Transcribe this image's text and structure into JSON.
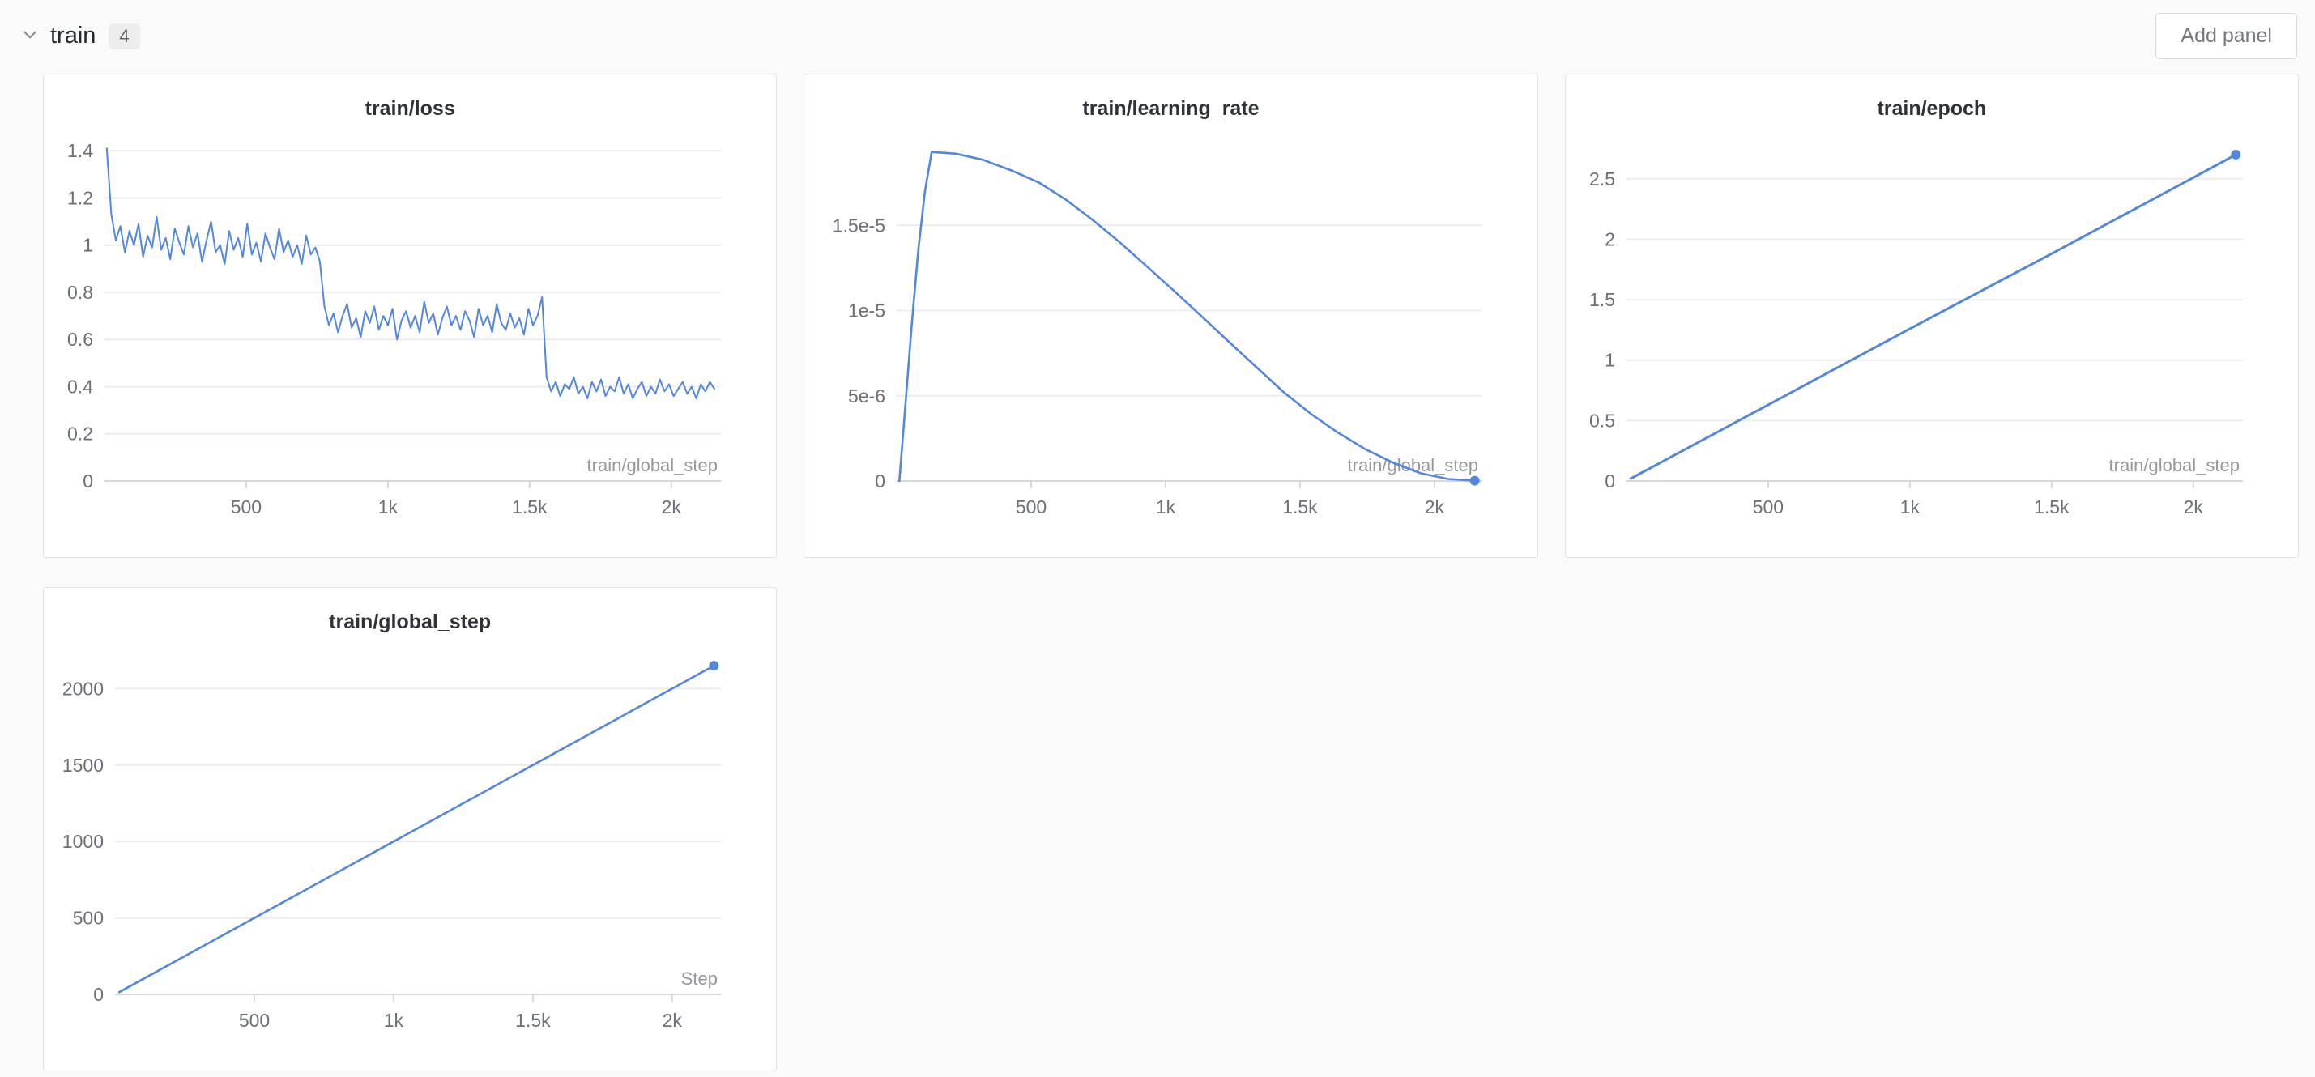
{
  "header": {
    "section_title": "train",
    "panel_count": "4",
    "add_panel_label": "Add panel"
  },
  "colors": {
    "accent_blue": "#5387dd",
    "grid": "#ececec",
    "axis": "#d8d8d8",
    "tick_text": "#6b7077",
    "axis_label_text": "#95989c"
  },
  "chart_data": [
    {
      "type": "line",
      "title": "train/loss",
      "xlabel": "train/global_step",
      "xlim": [
        0,
        2175
      ],
      "ylim": [
        0,
        1.445
      ],
      "x_ticks": [
        500,
        1000,
        1500,
        2000
      ],
      "x_tick_labels": [
        "500",
        "1k",
        "1.5k",
        "2k"
      ],
      "y_ticks": [
        0,
        0.2,
        0.4,
        0.6,
        0.8,
        1.0,
        1.2,
        1.4
      ],
      "y_tick_labels": [
        "0",
        "0.2",
        "0.4",
        "0.6",
        "0.8",
        "1",
        "1.2",
        "1.4"
      ],
      "series": {
        "x0": 8,
        "dx": 16,
        "y": [
          1.41,
          1.13,
          1.02,
          1.08,
          0.97,
          1.06,
          1.0,
          1.09,
          0.95,
          1.04,
          0.99,
          1.12,
          0.98,
          1.03,
          0.94,
          1.07,
          1.01,
          0.96,
          1.08,
          0.99,
          1.05,
          0.93,
          1.02,
          1.1,
          0.97,
          1.0,
          0.92,
          1.06,
          0.98,
          1.03,
          0.95,
          1.09,
          0.96,
          1.01,
          0.93,
          1.05,
          0.99,
          0.94,
          1.07,
          0.97,
          1.02,
          0.95,
          1.0,
          0.92,
          1.04,
          0.96,
          0.99,
          0.93,
          0.74,
          0.66,
          0.71,
          0.63,
          0.7,
          0.75,
          0.65,
          0.69,
          0.61,
          0.72,
          0.67,
          0.74,
          0.64,
          0.7,
          0.66,
          0.73,
          0.6,
          0.68,
          0.72,
          0.65,
          0.7,
          0.63,
          0.76,
          0.67,
          0.71,
          0.62,
          0.69,
          0.74,
          0.66,
          0.7,
          0.64,
          0.72,
          0.68,
          0.61,
          0.73,
          0.66,
          0.7,
          0.63,
          0.75,
          0.67,
          0.64,
          0.71,
          0.65,
          0.69,
          0.62,
          0.73,
          0.66,
          0.7,
          0.78,
          0.44,
          0.38,
          0.42,
          0.36,
          0.41,
          0.39,
          0.44,
          0.37,
          0.4,
          0.35,
          0.42,
          0.38,
          0.43,
          0.36,
          0.4,
          0.38,
          0.44,
          0.37,
          0.41,
          0.35,
          0.39,
          0.42,
          0.36,
          0.4,
          0.37,
          0.43,
          0.38,
          0.41,
          0.36,
          0.39,
          0.42,
          0.37,
          0.4,
          0.35,
          0.41,
          0.38,
          0.42,
          0.39
        ]
      },
      "end_dot": false,
      "stroke_width": 2
    },
    {
      "type": "line",
      "title": "train/learning_rate",
      "xlabel": "train/global_step",
      "xlim": [
        0,
        2175
      ],
      "ylim": [
        0,
        2e-05
      ],
      "x_ticks": [
        500,
        1000,
        1500,
        2000
      ],
      "x_tick_labels": [
        "500",
        "1k",
        "1.5k",
        "2k"
      ],
      "y_ticks": [
        0,
        5e-06,
        1e-05,
        1.5e-05
      ],
      "y_tick_labels": [
        "0",
        "5e-6",
        "1e-5",
        "1.5e-5"
      ],
      "series": {
        "x": [
          10,
          30,
          55,
          80,
          105,
          130,
          220,
          320,
          430,
          530,
          630,
          730,
          830,
          930,
          1035,
          1135,
          1240,
          1340,
          1440,
          1540,
          1640,
          1745,
          1850,
          1950,
          2050,
          2150
        ],
        "y": [
          0,
          4e-06,
          9e-06,
          1.35e-05,
          1.7e-05,
          1.93e-05,
          1.92e-05,
          1.885e-05,
          1.82e-05,
          1.75e-05,
          1.65e-05,
          1.53e-05,
          1.4e-05,
          1.26e-05,
          1.11e-05,
          9.65e-06,
          8.1e-06,
          6.65e-06,
          5.2e-06,
          3.95e-06,
          2.85e-06,
          1.85e-06,
          1.05e-06,
          4.5e-07,
          1.2e-07,
          2e-08
        ]
      },
      "end_dot": true,
      "stroke_width": 2.6
    },
    {
      "type": "line",
      "title": "train/epoch",
      "xlabel": "train/global_step",
      "xlim": [
        0,
        2175
      ],
      "ylim": [
        0,
        2.82
      ],
      "x_ticks": [
        500,
        1000,
        1500,
        2000
      ],
      "x_tick_labels": [
        "500",
        "1k",
        "1.5k",
        "2k"
      ],
      "y_ticks": [
        0,
        0.5,
        1,
        1.5,
        2,
        2.5
      ],
      "y_tick_labels": [
        "0",
        "0.5",
        "1",
        "1.5",
        "2",
        "2.5"
      ],
      "series": {
        "x": [
          15,
          500,
          1000,
          1500,
          2000,
          2150
        ],
        "y": [
          0.02,
          0.63,
          1.26,
          1.88,
          2.51,
          2.7
        ]
      },
      "end_dot": true,
      "stroke_width": 3
    },
    {
      "type": "line",
      "title": "train/global_step",
      "xlabel": "Step",
      "xlim": [
        0,
        2175
      ],
      "ylim": [
        0,
        2230
      ],
      "x_ticks": [
        500,
        1000,
        1500,
        2000
      ],
      "x_tick_labels": [
        "500",
        "1k",
        "1.5k",
        "2k"
      ],
      "y_ticks": [
        0,
        500,
        1000,
        1500,
        2000
      ],
      "y_tick_labels": [
        "0",
        "500",
        "1000",
        "1500",
        "2000"
      ],
      "series": {
        "x": [
          15,
          500,
          1000,
          1500,
          2000,
          2150
        ],
        "y": [
          15,
          500,
          1000,
          1500,
          2000,
          2150
        ]
      },
      "end_dot": true,
      "stroke_width": 2.6
    }
  ]
}
